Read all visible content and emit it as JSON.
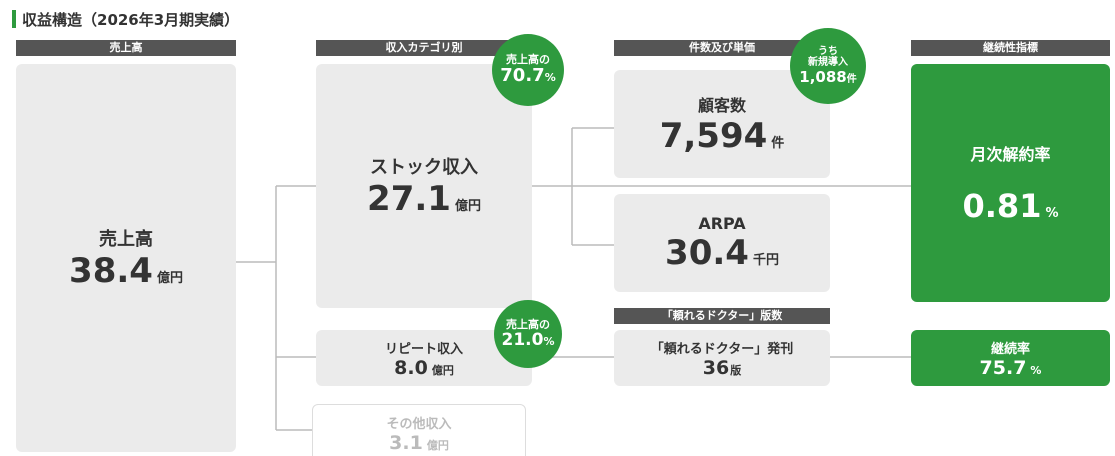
{
  "title": "収益構造（2026年3月期実績）",
  "headers": [
    "売上高",
    "収入カテゴリ別",
    "件数及び単価",
    "継続性指標"
  ],
  "sales": {
    "label": "売上高",
    "value": "38.4",
    "unit": "億円"
  },
  "stock": {
    "label": "ストック収入",
    "value": "27.1",
    "unit": "億円",
    "badge": {
      "label": "売上高の",
      "value": "70.7",
      "unit": "%"
    }
  },
  "repeat": {
    "label": "リピート収入",
    "value": "8.0",
    "unit": "億円",
    "badge": {
      "label": "売上高の",
      "value": "21.0",
      "unit": "%"
    }
  },
  "other": {
    "label": "その他収入",
    "value": "3.1",
    "unit": "億円"
  },
  "customers": {
    "label": "顧客数",
    "value": "7,594",
    "unit": "件",
    "badge": {
      "label1": "うち",
      "label2": "新規導入",
      "value": "1,088",
      "unit": "件"
    }
  },
  "arpa": {
    "label": "ARPA",
    "value": "30.4",
    "unit": "千円"
  },
  "edition_header": "「頼れるドクター」版数",
  "edition": {
    "label": "「頼れるドクター」発刊",
    "value": "36",
    "unit": "版"
  },
  "churn": {
    "label": "月次解約率",
    "value": "0.81",
    "unit": "%"
  },
  "retention": {
    "label": "継続率",
    "value": "75.7",
    "unit": "%"
  }
}
